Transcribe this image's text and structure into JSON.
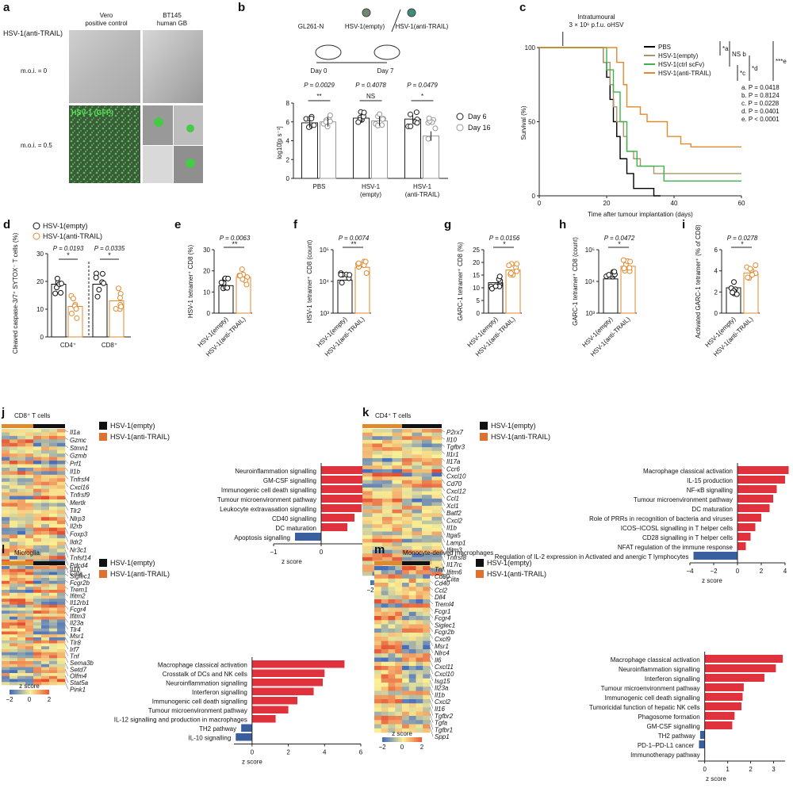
{
  "colors": {
    "empty": "#111111",
    "trail": "#e08a2e",
    "pbs": "#000000",
    "ctrl": "#3cb34a",
    "bar_pos": "#e0323c",
    "bar_neg": "#3a5f9e",
    "gfp": "#39c23c"
  },
  "panel_a": {
    "label": "a",
    "row_title": "HSV-1(anti-TRAIL)",
    "col1": "Vero",
    "col1b": "positive control",
    "col2": "BT145",
    "col2b": "human GB",
    "row1": "m.o.i. = 0",
    "row2": "m.o.i. = 0.5",
    "gfp_label": "HSV-1 (GFP)"
  },
  "panel_b": {
    "label": "b",
    "cell": "GL261-N",
    "virus1": "HSV-1(empty)",
    "virus2": "HSV-1(anti-TRAIL)",
    "day0": "Day 0",
    "day7": "Day 7",
    "pvals": [
      "P = 0.0029",
      "P = 0.4078",
      "P = 0.0479"
    ],
    "sig": [
      "**",
      "NS",
      "*"
    ],
    "ylabel": "log10[p s⁻¹]",
    "yticks": [
      "0",
      "2",
      "4",
      "6",
      "8"
    ],
    "groups": [
      "PBS",
      "HSV-1",
      "HSV-1"
    ],
    "groups2": [
      "",
      "(empty)",
      "(anti-TRAIL)"
    ],
    "legend": [
      "Day 6",
      "Day 16"
    ],
    "chart_data": {
      "type": "bar",
      "categories": [
        "PBS",
        "HSV-1(empty)",
        "HSV-1(anti-TRAIL)"
      ],
      "series": [
        {
          "name": "Day 6",
          "values": [
            5.9,
            6.4,
            6.3
          ]
        },
        {
          "name": "Day 16",
          "values": [
            6.0,
            6.1,
            4.5
          ]
        }
      ],
      "ylim": [
        0,
        8
      ],
      "ylabel": "log10[p s-1]"
    }
  },
  "panel_c": {
    "label": "c",
    "annot1": "Intratumoural",
    "annot2": "3 × 10⁶ p.f.u. oHSV",
    "ylabel": "Survival (%)",
    "xlabel": "Time after tumour implantation (days)",
    "xticks": [
      "0",
      "20",
      "40",
      "60"
    ],
    "yticks": [
      "0",
      "50",
      "100"
    ],
    "legend": [
      "PBS",
      "HSV-1(empty)",
      "HSV-1(ctrl scFv)",
      "HSV-1(anti-TRAIL)"
    ],
    "brackets": [
      "*a",
      "NS b",
      "*c",
      "*d",
      "***e"
    ],
    "pvalues": [
      "a. P = 0.0418",
      "b. P = 0.8124",
      "c. P = 0.0228",
      "d. P = 0.0401",
      "e. P < 0.0001"
    ],
    "chart_data": {
      "type": "line",
      "x_range": [
        0,
        60
      ],
      "ylim": [
        0,
        100
      ],
      "series": [
        {
          "name": "PBS",
          "steps": [
            [
              0,
              100
            ],
            [
              18,
              100
            ],
            [
              19,
              90
            ],
            [
              20,
              80
            ],
            [
              21,
              65
            ],
            [
              22,
              50
            ],
            [
              23,
              40
            ],
            [
              24,
              25
            ],
            [
              26,
              15
            ],
            [
              28,
              5
            ],
            [
              32,
              5
            ],
            [
              34,
              0
            ],
            [
              36,
              0
            ]
          ]
        },
        {
          "name": "HSV-1(empty)",
          "steps": [
            [
              0,
              100
            ],
            [
              17,
              100
            ],
            [
              19,
              90
            ],
            [
              21,
              75
            ],
            [
              22,
              60
            ],
            [
              23,
              50
            ],
            [
              25,
              40
            ],
            [
              26,
              30
            ],
            [
              28,
              25
            ],
            [
              30,
              20
            ],
            [
              34,
              15
            ],
            [
              60,
              15
            ]
          ]
        },
        {
          "name": "HSV-1(ctrl scFv)",
          "steps": [
            [
              0,
              100
            ],
            [
              19,
              100
            ],
            [
              20,
              85
            ],
            [
              22,
              70
            ],
            [
              24,
              50
            ],
            [
              26,
              30
            ],
            [
              29,
              20
            ],
            [
              36,
              20
            ],
            [
              37,
              10
            ],
            [
              60,
              10
            ]
          ]
        },
        {
          "name": "HSV-1(anti-TRAIL)",
          "steps": [
            [
              0,
              100
            ],
            [
              22,
              100
            ],
            [
              23,
              90
            ],
            [
              25,
              75
            ],
            [
              26,
              60
            ],
            [
              30,
              55
            ],
            [
              32,
              50
            ],
            [
              38,
              40
            ],
            [
              42,
              35
            ],
            [
              45,
              33
            ],
            [
              60,
              33
            ]
          ]
        }
      ]
    }
  },
  "panel_d": {
    "label": "d",
    "legend": [
      "HSV-1(empty)",
      "HSV-1(anti-TRAIL)"
    ],
    "pvals": [
      "P = 0.0193",
      "P = 0.0335"
    ],
    "sig": [
      "*",
      "*"
    ],
    "ylabel": "Cleaved caspase-3/7⁺ SYTOX⁻ T cells (%)",
    "yticks": [
      "0",
      "10",
      "20",
      "30"
    ],
    "cats": [
      "CD4⁺",
      "CD8⁺"
    ],
    "chart_data": {
      "type": "bar",
      "categories": [
        "CD4+",
        "CD8+"
      ],
      "series": [
        {
          "name": "HSV-1(empty)",
          "values": [
            19,
            19
          ]
        },
        {
          "name": "HSV-1(anti-TRAIL)",
          "values": [
            11,
            13
          ]
        }
      ],
      "ylim": [
        0,
        30
      ]
    }
  },
  "small_panels": [
    {
      "label": "e",
      "p": "P = 0.0063",
      "sig": "**",
      "ylabel": "HSV-1 tetramer⁺ CD8 (%)",
      "yticks": [
        "0",
        "10",
        "20",
        "30"
      ],
      "cats": [
        "HSV-1(empty)",
        "HSV-1(anti-TRAIL)"
      ],
      "chart_data": {
        "type": "bar",
        "categories": [
          "HSV-1(empty)",
          "HSV-1(anti-TRAIL)"
        ],
        "values": [
          13,
          17
        ],
        "ylim": [
          0,
          30
        ]
      }
    },
    {
      "label": "f",
      "p": "P = 0.0074",
      "sig": "**",
      "ylabel": "HSV-1 tetramer⁺ CD8 (count)",
      "yticks": [
        "10³",
        "10⁴",
        "10⁵"
      ],
      "cats": [
        "HSV-1(empty)",
        "HSV-1(anti-TRAIL)"
      ],
      "chart_data": {
        "type": "bar",
        "categories": [
          "HSV-1(empty)",
          "HSV-1(anti-TRAIL)"
        ],
        "values": [
          11000,
          28000
        ],
        "ylim": [
          1000,
          100000
        ],
        "log": true
      }
    },
    {
      "label": "g",
      "p": "P = 0.0156",
      "sig": "*",
      "ylabel": "GARC-1 tetramer⁺ CD8 (%)",
      "yticks": [
        "0",
        "5",
        "10",
        "15",
        "20",
        "25"
      ],
      "cats": [
        "HSV-1(empty)",
        "HSV-1(anti-TRAIL)"
      ],
      "chart_data": {
        "type": "bar",
        "categories": [
          "HSV-1(empty)",
          "HSV-1(anti-TRAIL)"
        ],
        "values": [
          12,
          17
        ],
        "ylim": [
          0,
          25
        ]
      }
    },
    {
      "label": "h",
      "p": "P = 0.0472",
      "sig": "*",
      "ylabel": "GARC-1 tetramer⁺ CD8 (count)",
      "yticks": [
        "10³",
        "10⁴",
        "10⁵"
      ],
      "cats": [
        "HSV-1(empty)",
        "HSV-1(anti-TRAIL)"
      ],
      "chart_data": {
        "type": "bar",
        "categories": [
          "HSV-1(empty)",
          "HSV-1(anti-TRAIL)"
        ],
        "values": [
          12000,
          30000
        ],
        "ylim": [
          1000,
          100000
        ],
        "log": true
      }
    },
    {
      "label": "i",
      "p": "P = 0.0278",
      "sig": "*",
      "ylabel": "Activated GARC-1 tetramer⁺ (% of CD8)",
      "yticks": [
        "0",
        "2",
        "4",
        "6"
      ],
      "cats": [
        "HSV-1(empty)",
        "HSV-1(anti-TRAIL)"
      ],
      "chart_data": {
        "type": "bar",
        "categories": [
          "HSV-1(empty)",
          "HSV-1(anti-TRAIL)"
        ],
        "values": [
          2.4,
          3.8
        ],
        "ylim": [
          0,
          6
        ]
      }
    }
  ],
  "heat_panels": [
    {
      "label": "j",
      "title": "CD8⁺ T cells",
      "legend": [
        "HSV-1(empty)",
        "HSV-1(anti-TRAIL)"
      ],
      "genes": [
        "Il1a",
        "Gzmc",
        "Stmn1",
        "Gzmb",
        "Prf1",
        "Il1b",
        "Tnfrsf4",
        "Cxcl16",
        "Tnfrsf9",
        "Mertk",
        "Tlr2",
        "Nlrp3",
        "Il2rb",
        "Foxp3",
        "Ildr2",
        "Nr3c1",
        "Tnfsf14",
        "Pdcd4",
        "Ciita"
      ],
      "zlabel": "z score",
      "zticks": [
        "−2",
        "0",
        "2"
      ],
      "xlabel": "z score",
      "xticks": [
        "−1",
        "0",
        "1",
        "2"
      ],
      "chart_data": {
        "type": "bar",
        "orientation": "horizontal",
        "categories": [
          "Neuroinflammation signalling",
          "GM-CSF signalling",
          "Immunogenic cell death signalling",
          "Tumour microenvironment pathway",
          "Leukocyte extravasation signalling",
          "CD40 signalling",
          "DC maturation",
          "Apoptosis signalling"
        ],
        "values": [
          1.85,
          1.4,
          1.15,
          1.1,
          0.85,
          0.7,
          0.55,
          -0.55
        ],
        "xlim": [
          -1,
          2
        ]
      }
    },
    {
      "label": "k",
      "title": "CD4⁺ T cells",
      "legend": [
        "HSV-1(empty)",
        "HSV-1(anti-TRAIL)"
      ],
      "genes": [
        "P2rx7",
        "Il10",
        "Tgfbr3",
        "Il1r1",
        "Il17a",
        "Ccr6",
        "Cxcl10",
        "Cd70",
        "Cxcl12",
        "Ccl1",
        "Xcl1",
        "Batf2",
        "Cxcl2",
        "Il1b",
        "Itga5",
        "Lamp1",
        "Ifitm3",
        "Tnfrsf8",
        "Il17rc",
        "Ifitm6",
        "Ciita"
      ],
      "zlabel": "z score",
      "zticks": [
        "−2",
        "0",
        "2"
      ],
      "xlabel": "z score",
      "xticks": [
        "−4",
        "−2",
        "0",
        "2",
        "4"
      ],
      "chart_data": {
        "type": "bar",
        "orientation": "horizontal",
        "categories": [
          "Macrophage classical activation",
          "IL-15 production",
          "NF-κB signalling",
          "Tumour microenvironment pathway",
          "DC maturation",
          "Role of PRRs in recognition of bacteria and viruses",
          "ICOS–ICOSL signalling in T helper cells",
          "CD28 signalling in T helper cells",
          "NFAT regulation of the immune response",
          "Regulation of IL-2 expression in Activated and anergic T lymphocytes"
        ],
        "values": [
          4.3,
          4.0,
          3.3,
          3.0,
          2.7,
          2.0,
          1.5,
          1.1,
          0.7,
          -3.7
        ],
        "xlim": [
          -4,
          4
        ]
      }
    },
    {
      "label": "l",
      "title": "Microglia",
      "legend": [
        "HSV-1(empty)",
        "HSV-1(anti-TRAIL)"
      ],
      "genes": [
        "Il1b",
        "Siglec1",
        "Fcgr2b",
        "Trem1",
        "Ifitm2",
        "Il12rb1",
        "Fcgr4",
        "Ifitm3",
        "Il23a",
        "Tlr4",
        "Msr1",
        "Tlr8",
        "Irf7",
        "Tnf",
        "Sema3b",
        "Setd7",
        "Olfm4",
        "Stat5a",
        "Pink1"
      ],
      "zlabel": "z score",
      "zticks": [
        "−2",
        "0",
        "2"
      ],
      "xlabel": "z score",
      "xticks": [
        "0",
        "2",
        "4",
        "6"
      ],
      "chart_data": {
        "type": "bar",
        "orientation": "horizontal",
        "categories": [
          "Macrophage classical activation",
          "Crosstalk of DCs and NK cells",
          "Neuroinflammation signalling",
          "Interferon signalling",
          "Immunogenic cell death signalling",
          "Tumour microenvironment pathway",
          "IL-12 signalling and production in macrophages",
          "TH2 pathway",
          "IL-10 signalling"
        ],
        "values": [
          5.1,
          4.0,
          3.9,
          3.4,
          2.5,
          2.0,
          1.3,
          -0.6,
          -0.9
        ],
        "xlim": [
          -1,
          6
        ]
      }
    },
    {
      "label": "m",
      "title": "Monocyte-derived macrophages",
      "legend": [
        "HSV-1(empty)",
        "HSV-1(anti-TRAIL)"
      ],
      "genes": [
        "Tnf",
        "Cd80",
        "Cd40",
        "Ccl2",
        "Dll4",
        "Treml4",
        "Fcgr1",
        "Fcgr4",
        "Siglec1",
        "Fcgr2b",
        "Cxcl9",
        "Msr1",
        "Nlrc4",
        "Il6",
        "Cxcl11",
        "Cxcl10",
        "Isg15",
        "Il23a",
        "Il1b",
        "Cxcl2",
        "Il16",
        "Tgfbr2",
        "Tgfa",
        "Tgfbr1",
        "Spp1"
      ],
      "zlabel": "z score",
      "zticks": [
        "−2",
        "0",
        "2"
      ],
      "xlabel": "z score",
      "xticks": [
        "0",
        "1",
        "2",
        "3"
      ],
      "chart_data": {
        "type": "bar",
        "orientation": "horizontal",
        "categories": [
          "Macrophage classical activation",
          "Neuroinflammation signalling",
          "Interferon signalling",
          "Tumour microenvironment pathway",
          "Immunogenic cell death signalling",
          "Tumoricidal function of hepatic NK cells",
          "Phagosome formation",
          "GM-CSF signalling",
          "TH2 pathway",
          "PD-1–PD-L1 cancer",
          "Immunotherapy pathway"
        ],
        "values": [
          3.4,
          3.1,
          2.6,
          1.7,
          1.65,
          1.6,
          1.3,
          1.2,
          -0.2,
          -0.25,
          0
        ],
        "xlim": [
          -0.3,
          3.5
        ]
      }
    }
  ]
}
